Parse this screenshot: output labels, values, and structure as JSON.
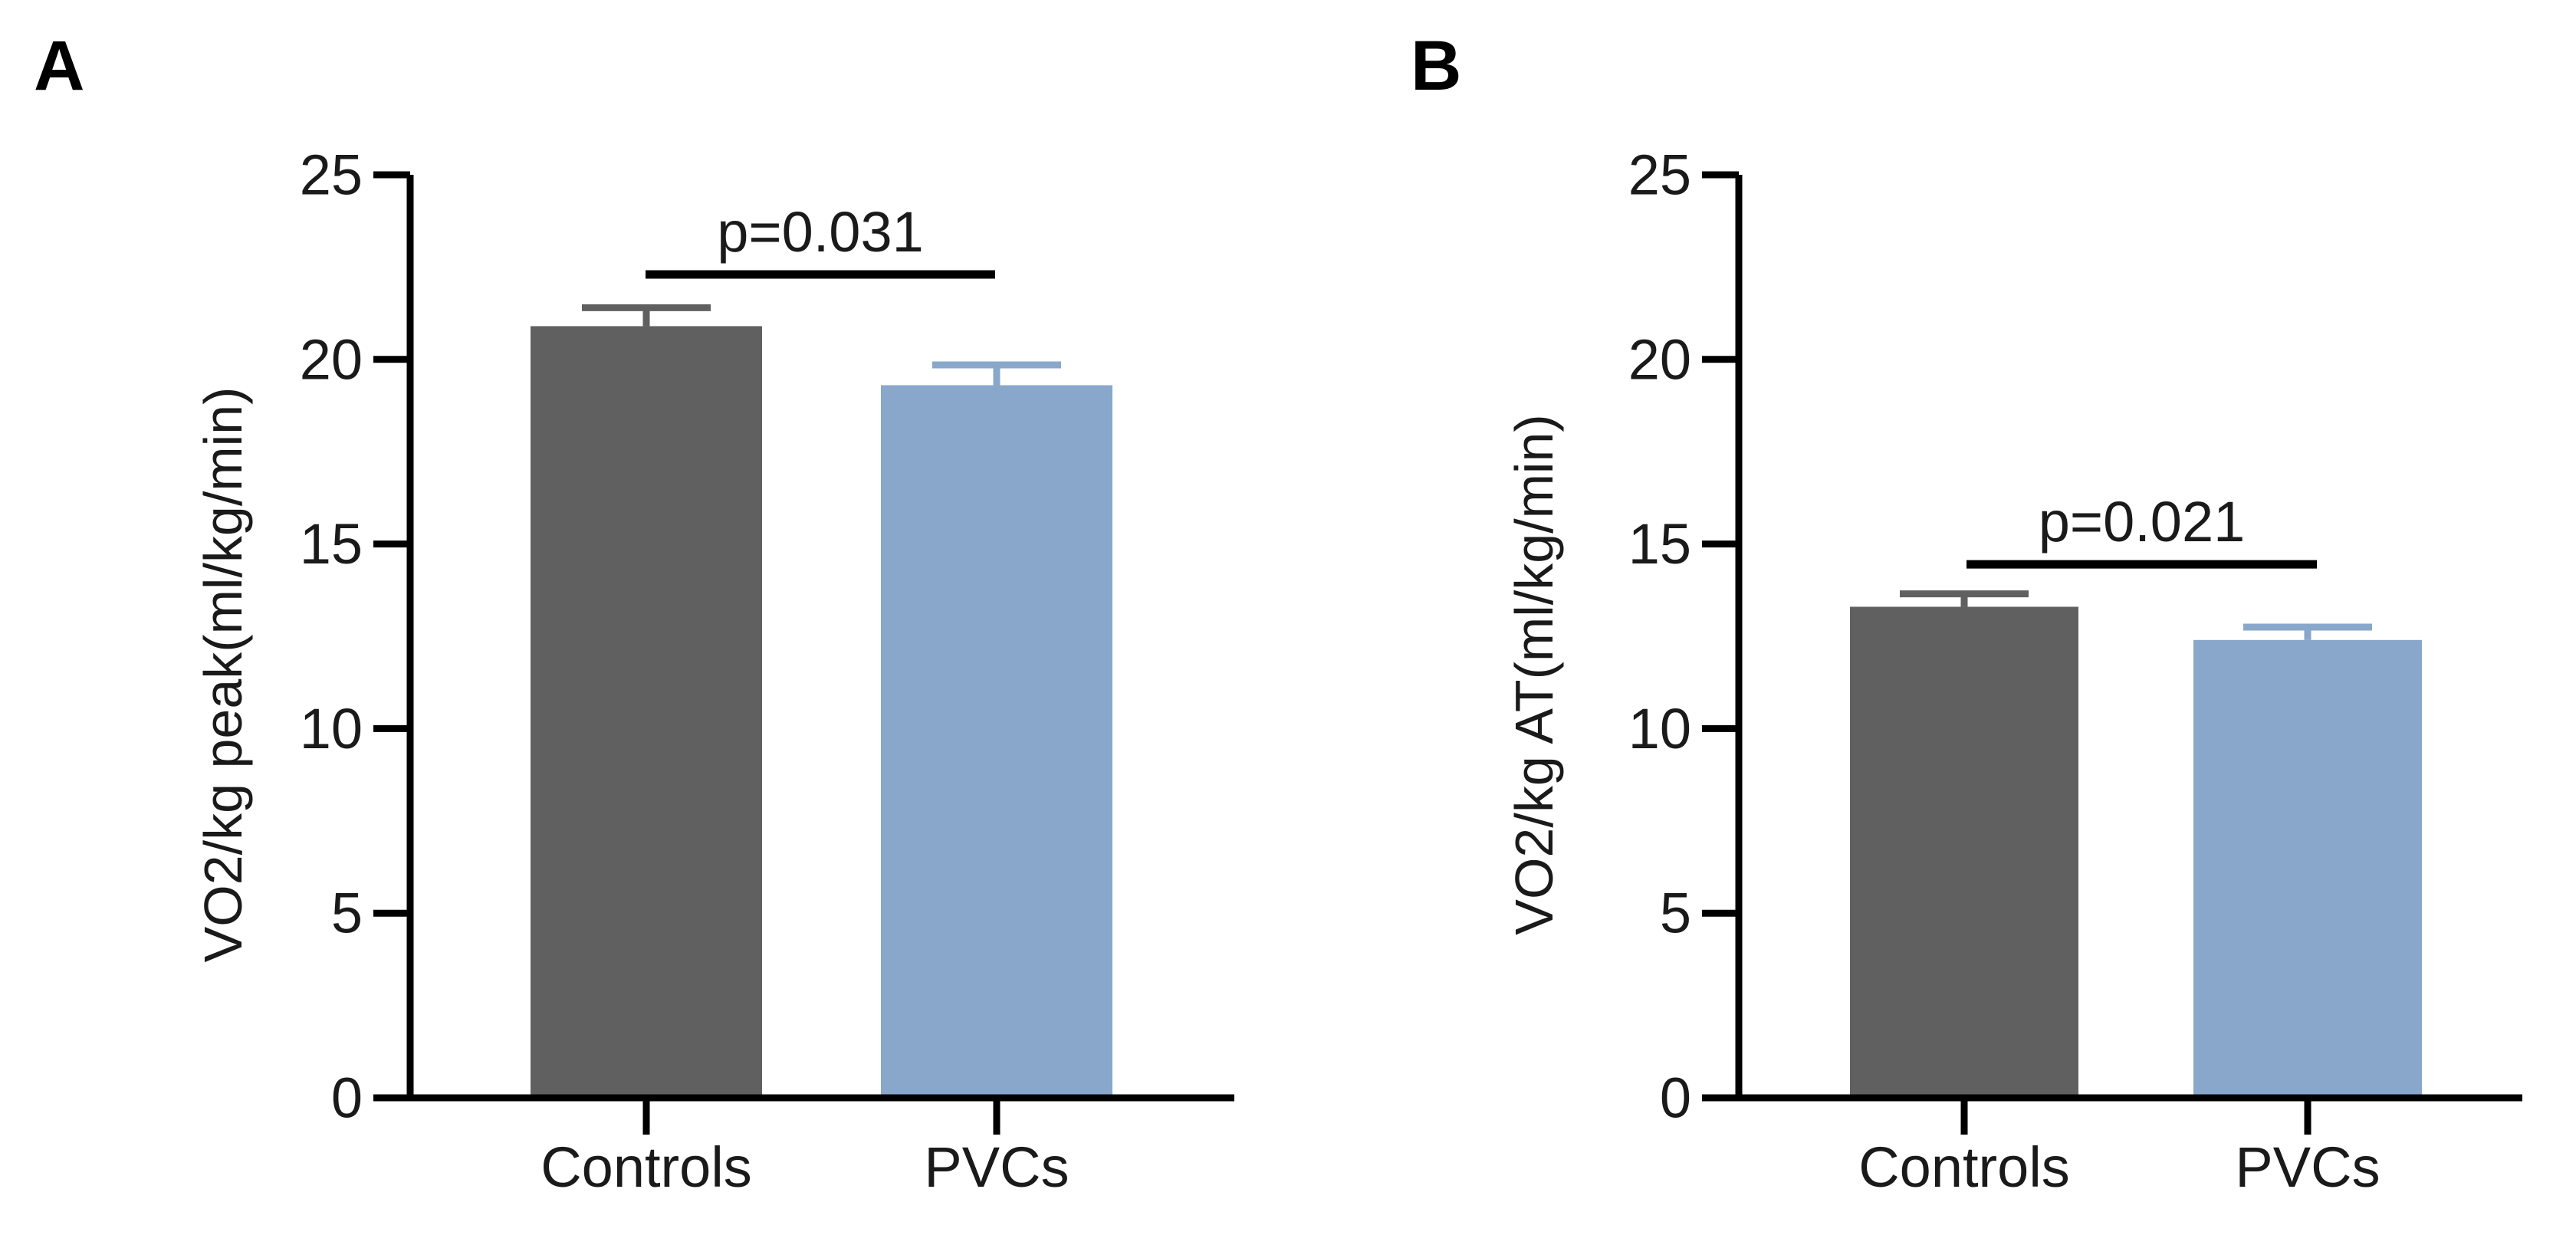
{
  "chart_data": [
    {
      "type": "bar",
      "panel_label": "A",
      "categories": [
        "Controls",
        "PVCs"
      ],
      "values": [
        20.9,
        19.3
      ],
      "error_upper": [
        21.4,
        19.85
      ],
      "bar_colors": [
        "#606060",
        "#88a7cb"
      ],
      "ylabel": "VO2/kg peak(ml/kg/min)",
      "xlabel": "",
      "ylim": [
        0,
        25
      ],
      "yticks": [
        "0",
        "5",
        "10",
        "15",
        "20",
        "25"
      ],
      "significance": {
        "label": "p=0.031",
        "between": [
          "Controls",
          "PVCs"
        ],
        "bracket_y": 22.3
      },
      "grid": false,
      "legend": "none"
    },
    {
      "type": "bar",
      "panel_label": "B",
      "categories": [
        "Controls",
        "PVCs"
      ],
      "values": [
        13.3,
        12.4
      ],
      "error_upper": [
        13.65,
        12.75
      ],
      "bar_colors": [
        "#606060",
        "#88a7cb"
      ],
      "ylabel": "VO2/kg AT(ml/kg/min)",
      "xlabel": "",
      "ylim": [
        0,
        25
      ],
      "yticks": [
        "0",
        "5",
        "10",
        "15",
        "20",
        "25"
      ],
      "significance": {
        "label": "p=0.021",
        "between": [
          "Controls",
          "PVCs"
        ],
        "bracket_y": 14.45
      },
      "grid": false,
      "legend": "none"
    }
  ]
}
